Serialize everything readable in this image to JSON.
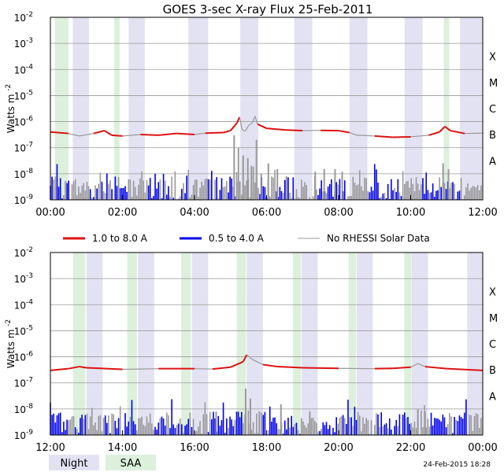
{
  "chart_data": {
    "type": "line",
    "title": "GOES 3-sec X-ray Flux   25-Feb-2011",
    "ylabel": "Watts m",
    "ylabel_sup": "-2",
    "y_scale": "log",
    "ylim": [
      1e-09,
      0.01
    ],
    "y_ticks": [
      {
        "base": "10",
        "exp": "-2"
      },
      {
        "base": "10",
        "exp": "-3"
      },
      {
        "base": "10",
        "exp": "-4"
      },
      {
        "base": "10",
        "exp": "-5"
      },
      {
        "base": "10",
        "exp": "-6"
      },
      {
        "base": "10",
        "exp": "-7"
      },
      {
        "base": "10",
        "exp": "-8"
      },
      {
        "base": "10",
        "exp": "-9"
      }
    ],
    "flare_classes": [
      "X",
      "M",
      "C",
      "B",
      "A"
    ],
    "legend": {
      "long": {
        "label": "1.0 to 8.0 A",
        "color": "#dd1111"
      },
      "short": {
        "label": "0.5 to 4.0 A",
        "color": "#0000ee"
      },
      "norhessi": {
        "label": "No RHESSI Solar Data",
        "color": "#999999"
      }
    },
    "shade_legend": {
      "night": {
        "label": "Night",
        "color": "#e2e2f3"
      },
      "saa": {
        "label": "SAA",
        "color": "#dcf0dc"
      }
    },
    "footer": "24-Feb-2015 18:28",
    "panels": [
      {
        "x_ticks": [
          "00:00",
          "02:00",
          "04:00",
          "06:00",
          "08:00",
          "10:00",
          "12:00"
        ],
        "night": [
          [
            0.62,
            1.07
          ],
          [
            2.17,
            2.62
          ],
          [
            3.83,
            4.38
          ],
          [
            5.27,
            5.77
          ],
          [
            6.77,
            7.27
          ],
          [
            8.3,
            8.8
          ],
          [
            9.83,
            10.33
          ],
          [
            11.37,
            12.0
          ]
        ],
        "saa": [
          [
            0.12,
            0.5
          ],
          [
            1.77,
            1.92
          ],
          [
            10.92,
            11.07
          ]
        ],
        "long": [
          [
            0.0,
            4e-07
          ],
          [
            0.5,
            3.5e-07
          ],
          [
            0.8,
            2.8e-07
          ],
          [
            1.2,
            3.5e-07
          ],
          [
            1.5,
            4.5e-07
          ],
          [
            1.7,
            3e-07
          ],
          [
            2.0,
            2.8e-07
          ],
          [
            2.5,
            3.2e-07
          ],
          [
            3.0,
            3e-07
          ],
          [
            3.5,
            3.5e-07
          ],
          [
            4.0,
            3.2e-07
          ],
          [
            4.3,
            3.6e-07
          ],
          [
            4.8,
            3.8e-07
          ],
          [
            5.0,
            4.5e-07
          ],
          [
            5.18,
            9e-07
          ],
          [
            5.25,
            1.5e-06
          ],
          [
            5.32,
            5e-07
          ],
          [
            5.4,
            4.2e-07
          ],
          [
            5.5,
            7e-07
          ],
          [
            5.6,
            9e-07
          ],
          [
            5.68,
            1.6e-06
          ],
          [
            5.75,
            8e-07
          ],
          [
            6.0,
            5.5e-07
          ],
          [
            6.5,
            4.8e-07
          ],
          [
            7.0,
            4.5e-07
          ],
          [
            7.5,
            4.6e-07
          ],
          [
            8.0,
            4.5e-07
          ],
          [
            8.3,
            3.8e-07
          ],
          [
            8.5,
            3e-07
          ],
          [
            9.0,
            2.8e-07
          ],
          [
            9.5,
            2.5e-07
          ],
          [
            10.0,
            2.6e-07
          ],
          [
            10.5,
            3e-07
          ],
          [
            10.8,
            4e-07
          ],
          [
            10.95,
            6.5e-07
          ],
          [
            11.1,
            4.5e-07
          ],
          [
            11.5,
            3.5e-07
          ],
          [
            12.0,
            3.6e-07
          ]
        ],
        "short_level": 2.5e-09,
        "spikes": [
          [
            5.1,
            3e-07
          ],
          [
            5.22,
            1e-07
          ],
          [
            5.35,
            5e-08
          ],
          [
            5.48,
            4e-08
          ],
          [
            5.58,
            2e-08
          ],
          [
            5.72,
            2e-07
          ],
          [
            5.85,
            1e-08
          ],
          [
            6.05,
            2.5e-08
          ],
          [
            6.3,
            1.5e-08
          ],
          [
            6.55,
            8e-09
          ],
          [
            7.35,
            1.2e-08
          ],
          [
            7.6,
            1.5e-08
          ],
          [
            7.9,
            1.5e-08
          ],
          [
            8.1,
            1.2e-08
          ],
          [
            10.9,
            2.5e-08
          ],
          [
            11.05,
            1.5e-08
          ]
        ]
      },
      {
        "x_ticks": [
          "12:00",
          "14:00",
          "16:00",
          "18:00",
          "20:00",
          "22:00",
          "00:00"
        ],
        "night": [
          [
            13.0,
            13.45
          ],
          [
            14.43,
            14.88
          ],
          [
            15.93,
            16.38
          ],
          [
            17.45,
            17.9
          ],
          [
            18.97,
            19.42
          ],
          [
            20.5,
            20.95
          ],
          [
            22.03,
            22.48
          ],
          [
            23.57,
            24.0
          ]
        ],
        "saa": [
          [
            12.63,
            12.97
          ],
          [
            14.13,
            14.4
          ],
          [
            15.63,
            15.9
          ],
          [
            17.17,
            17.43
          ],
          [
            18.73,
            18.95
          ],
          [
            20.28,
            20.48
          ],
          [
            21.82,
            22.02
          ]
        ],
        "long": [
          [
            12.0,
            3e-07
          ],
          [
            12.5,
            3.5e-07
          ],
          [
            12.8,
            4.2e-07
          ],
          [
            13.0,
            3.8e-07
          ],
          [
            14.0,
            3.3e-07
          ],
          [
            15.0,
            3.5e-07
          ],
          [
            16.0,
            3.5e-07
          ],
          [
            16.5,
            3.4e-07
          ],
          [
            17.0,
            4e-07
          ],
          [
            17.35,
            6.5e-07
          ],
          [
            17.45,
            1.2e-06
          ],
          [
            17.6,
            8e-07
          ],
          [
            17.9,
            5e-07
          ],
          [
            18.3,
            4.2e-07
          ],
          [
            19.0,
            3.8e-07
          ],
          [
            20.0,
            3.6e-07
          ],
          [
            21.0,
            3.5e-07
          ],
          [
            21.5,
            3.6e-07
          ],
          [
            22.0,
            4e-07
          ],
          [
            22.2,
            5.5e-07
          ],
          [
            22.4,
            4.2e-07
          ],
          [
            23.0,
            3.5e-07
          ],
          [
            24.0,
            3e-07
          ]
        ],
        "short_level": 2.5e-09,
        "spikes": [
          [
            17.42,
            6e-08
          ],
          [
            17.55,
            2.5e-08
          ],
          [
            17.8,
            8e-09
          ],
          [
            18.4,
            1.5e-08
          ],
          [
            19.2,
            8e-09
          ],
          [
            22.2,
            1e-08
          ],
          [
            22.4,
            8e-09
          ],
          [
            16.6,
            8e-09
          ]
        ]
      }
    ]
  }
}
